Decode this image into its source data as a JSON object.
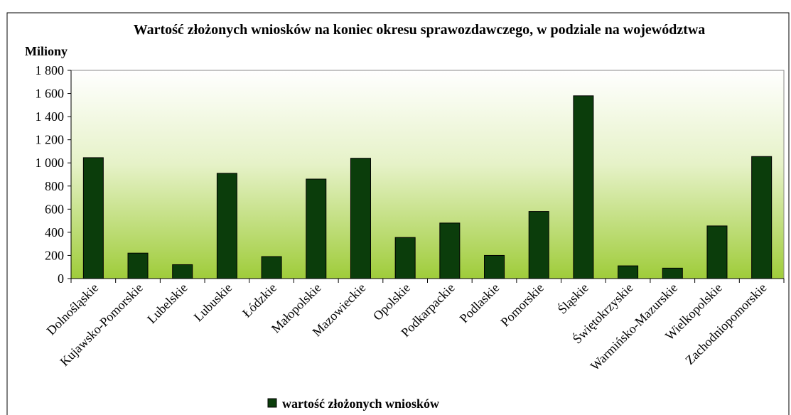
{
  "chart_data": {
    "type": "bar",
    "title": "Wartość złożonych wniosków na koniec okresu sprawozdawczego,  w podziale na województwa",
    "y_axis_label": "Miliony",
    "categories": [
      "Dolnośląskie",
      "Kujawsko-Pomorskie",
      "Lubelskie",
      "Lubuskie",
      "Łódzkie",
      "Małopolskie",
      "Mazowieckie",
      "Opolskie",
      "Podkarpackie",
      "Podlaskie",
      "Pomorskie",
      "Śląskie",
      "Świętokrzyskie",
      "Warmińsko-Mazurskie",
      "Wielkopolskie",
      "Zachodniopomorskie"
    ],
    "series": [
      {
        "name": "wartość złożonych wniosków",
        "color": "#0b3d0b",
        "values": [
          1045,
          220,
          120,
          910,
          190,
          860,
          1040,
          355,
          480,
          200,
          580,
          1580,
          110,
          90,
          455,
          1055
        ]
      }
    ],
    "ylim": [
      0,
      1800
    ],
    "yticks": [
      0,
      {
        "value": 200,
        "label": "200"
      },
      {
        "value": 400,
        "label": "400"
      },
      {
        "value": 600,
        "label": "600"
      },
      {
        "value": 800,
        "label": "800"
      },
      {
        "value": 1000,
        "label": "1 000"
      },
      {
        "value": 1200,
        "label": "1 200"
      },
      {
        "value": 1400,
        "label": "1 400"
      },
      {
        "value": 1600,
        "label": "1 600"
      },
      {
        "value": 1800,
        "label": "1 800"
      }
    ],
    "legend": "bottom"
  }
}
